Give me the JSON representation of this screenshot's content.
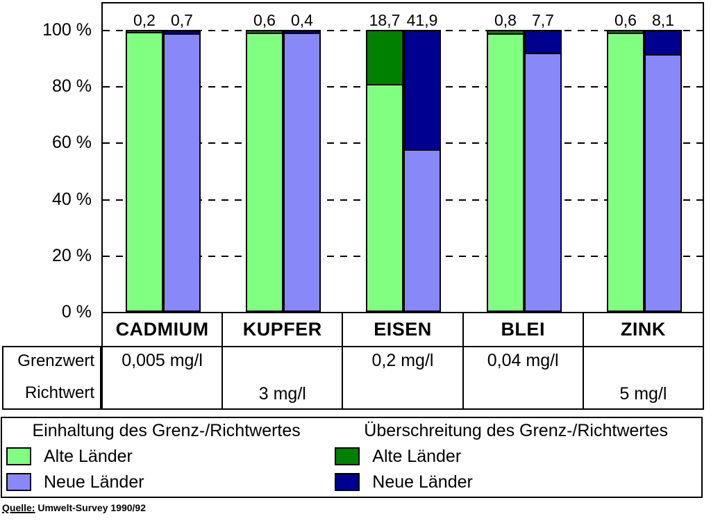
{
  "chart_data": {
    "type": "bar",
    "stacked": true,
    "title": "",
    "xlabel": "",
    "ylabel": "",
    "ylim": [
      0,
      100
    ],
    "grid": true,
    "ytick_labels": [
      "100 %",
      "80 %",
      "60 %",
      "40 %",
      "20 %",
      "0 %"
    ],
    "categories": [
      "CADMIUM",
      "KUPFER",
      "EISEN",
      "BLEI",
      "ZINK"
    ],
    "groups": [
      {
        "category": "CADMIUM",
        "alte": {
          "einhaltung_pct": 99.8,
          "ueberschreitung_pct": 0.2,
          "label": "0,2"
        },
        "neue": {
          "einhaltung_pct": 99.3,
          "ueberschreitung_pct": 0.7,
          "label": "0,7"
        }
      },
      {
        "category": "KUPFER",
        "alte": {
          "einhaltung_pct": 99.4,
          "ueberschreitung_pct": 0.6,
          "label": "0,6"
        },
        "neue": {
          "einhaltung_pct": 99.6,
          "ueberschreitung_pct": 0.4,
          "label": "0,4"
        }
      },
      {
        "category": "EISEN",
        "alte": {
          "einhaltung_pct": 81.3,
          "ueberschreitung_pct": 18.7,
          "label": "18,7"
        },
        "neue": {
          "einhaltung_pct": 58.1,
          "ueberschreitung_pct": 41.9,
          "label": "41,9"
        }
      },
      {
        "category": "BLEI",
        "alte": {
          "einhaltung_pct": 99.2,
          "ueberschreitung_pct": 0.8,
          "label": "0,8"
        },
        "neue": {
          "einhaltung_pct": 92.3,
          "ueberschreitung_pct": 7.7,
          "label": "7,7"
        }
      },
      {
        "category": "ZINK",
        "alte": {
          "einhaltung_pct": 99.4,
          "ueberschreitung_pct": 0.6,
          "label": "0,6"
        },
        "neue": {
          "einhaltung_pct": 91.9,
          "ueberschreitung_pct": 8.1,
          "label": "8,1"
        }
      }
    ],
    "colors": {
      "alte_einhaltung": "#80FF80",
      "neue_einhaltung": "#8888F8",
      "alte_ueberschreitung": "#008000",
      "neue_ueberschreitung": "#000090"
    },
    "legend_position": "bottom"
  },
  "limit_table": {
    "row_labels": [
      "Grenzwert",
      "Richtwert"
    ],
    "cells": [
      {
        "grenzwert": "0,005 mg/l",
        "richtwert": ""
      },
      {
        "grenzwert": "",
        "richtwert": "3 mg/l"
      },
      {
        "grenzwert": "0,2 mg/l",
        "richtwert": ""
      },
      {
        "grenzwert": "0,04 mg/l",
        "richtwert": ""
      },
      {
        "grenzwert": "",
        "richtwert": "5 mg/l"
      }
    ]
  },
  "legend": {
    "compliance": {
      "title": "Einhaltung des Grenz-/Richtwertes",
      "items": [
        {
          "label": "Alte Länder",
          "color": "#80FF80"
        },
        {
          "label": "Neue Länder",
          "color": "#8888F8"
        }
      ]
    },
    "exceedance": {
      "title": "Überschreitung des Grenz-/Richtwertes",
      "items": [
        {
          "label": "Alte Länder",
          "color": "#008000"
        },
        {
          "label": "Neue Länder",
          "color": "#000090"
        }
      ]
    }
  },
  "source": {
    "label": "Quelle:",
    "text": " Umwelt-Survey 1990/92"
  }
}
